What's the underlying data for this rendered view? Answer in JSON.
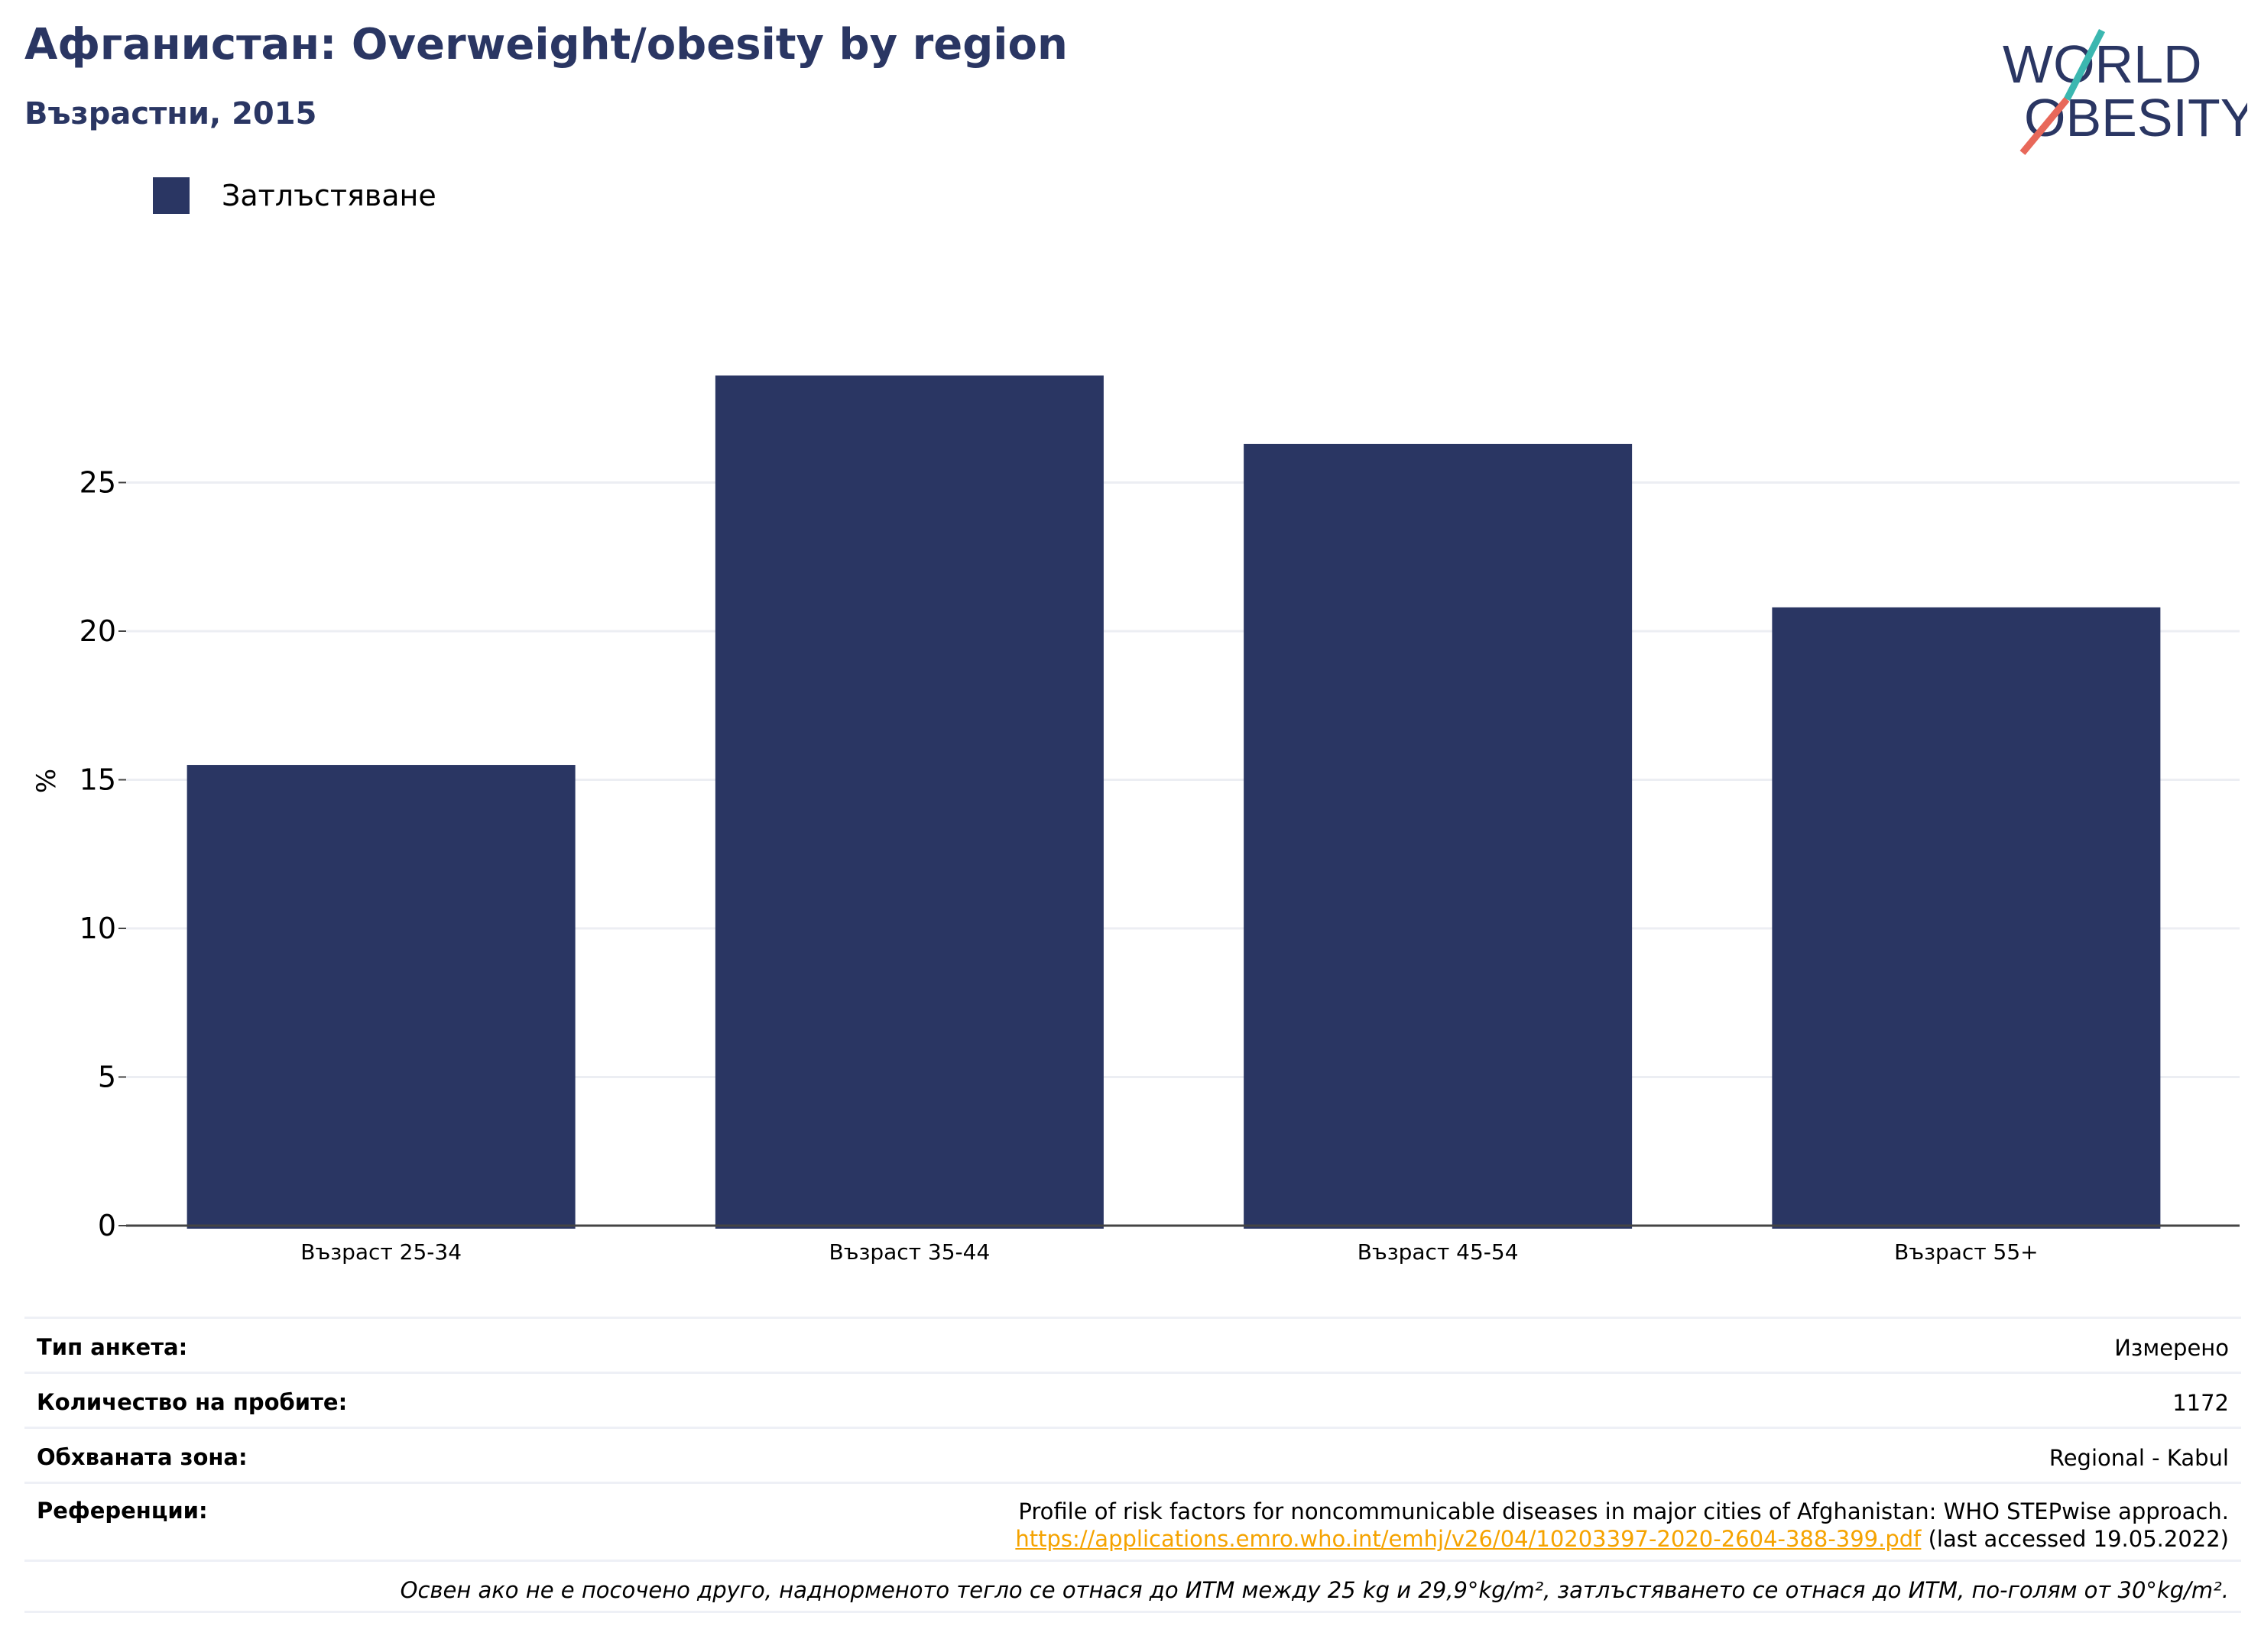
{
  "header": {
    "title": "Афганистан: Overweight/obesity by region",
    "subtitle": "Възрастни, 2015"
  },
  "logo": {
    "line1": "WORLD",
    "line2": "OBESITY"
  },
  "legend": {
    "items": [
      {
        "label": "Затлъстяване",
        "color": "#2a3663"
      }
    ]
  },
  "chart_data": {
    "type": "bar",
    "categories": [
      "Възраст 25-34",
      "Възраст 35-44",
      "Възраст 45-54",
      "Възраст 55+"
    ],
    "series": [
      {
        "name": "Затлъстяване",
        "values": [
          15.5,
          28.6,
          26.3,
          20.8
        ],
        "color": "#2a3663"
      }
    ],
    "ylabel": "%",
    "xlabel": "",
    "ylim": [
      0,
      30
    ],
    "yticks": [
      0,
      5,
      10,
      15,
      20,
      25
    ],
    "grid": true,
    "legend_position": "top-left"
  },
  "info": {
    "survey_type_label": "Тип анкета:",
    "survey_type_value": "Измерено",
    "sample_size_label": "Количество на пробите:",
    "sample_size_value": "1172",
    "area_label": "Обхваната зона:",
    "area_value": "Regional - Kabul",
    "references_label": "Референции:",
    "references_text": "Profile of risk factors for noncommunicable diseases in major cities of Afghanistan: WHO STEPwise approach.",
    "references_link": "https://applications.emro.who.int/emhj/v26/04/10203397-2020-2604-388-399.pdf",
    "references_accessed": "(last accessed 19.05.2022)",
    "footnote": "Освен ако не е посочено друго, наднорменото тегло се отнася до ИТМ между 25 kg и 29,9°kg/m², затлъстяването се отнася до ИТМ, по-голям от 30°kg/m²."
  }
}
